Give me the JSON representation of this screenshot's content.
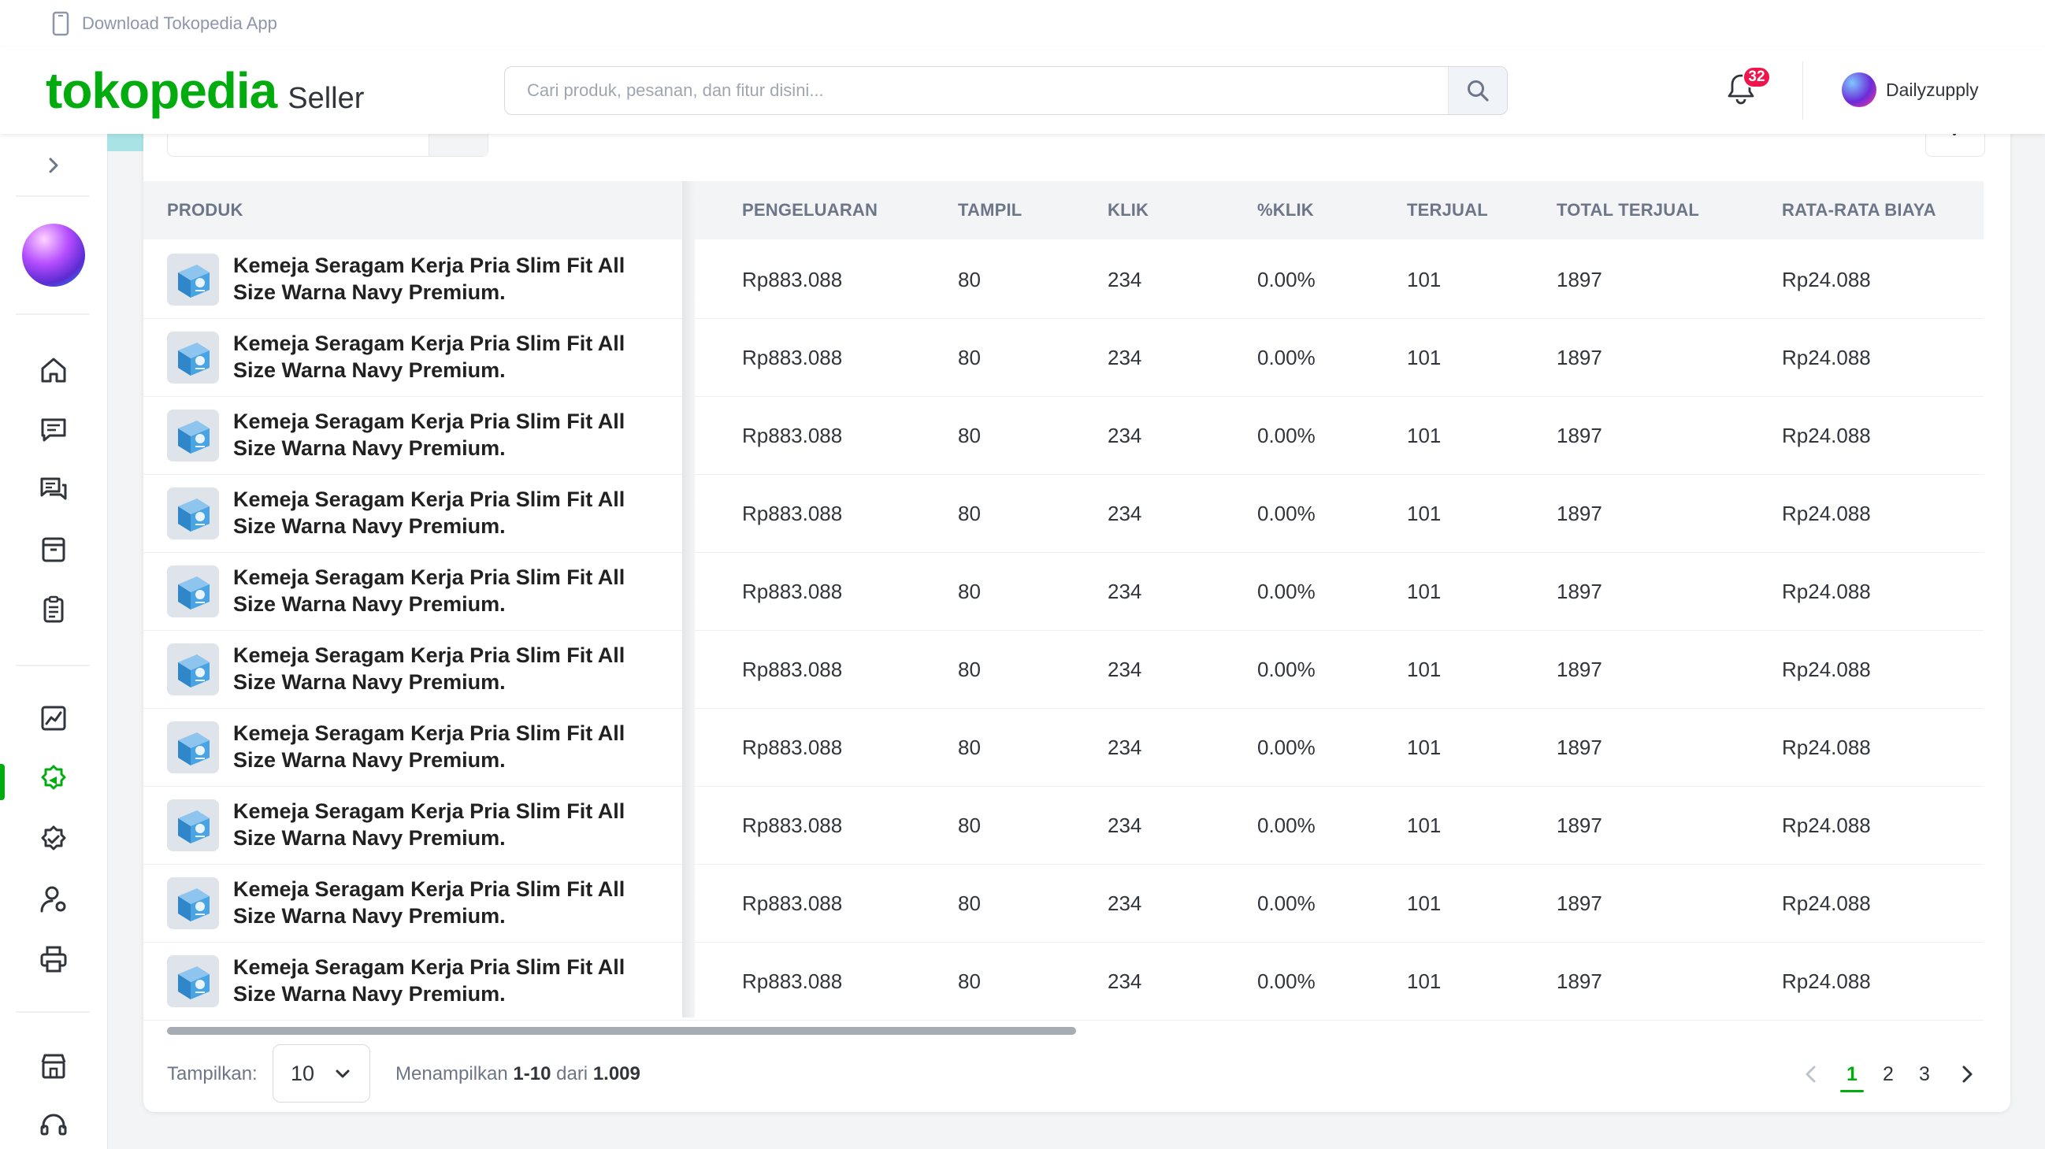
{
  "topbar": {
    "download_text": "Download Tokopedia App"
  },
  "header": {
    "brand": "tokopedia",
    "brand_suffix": "Seller",
    "search_placeholder": "Cari produk, pesanan, dan fitur disini...",
    "notification_count": "32",
    "username": "Dailyzupply"
  },
  "sidebar": {
    "icons": [
      "home-icon",
      "chat-icon",
      "discussion-icon",
      "product-box-icon",
      "orders-icon",
      "statistics-icon",
      "ads-icon",
      "badge-icon",
      "user-settings-icon",
      "printer-icon",
      "shop-icon",
      "support-icon"
    ],
    "active": "ads-icon"
  },
  "table": {
    "columns": [
      "PRODUK",
      "PENGELUARAN",
      "TAMPIL",
      "KLIK",
      "%KLIK",
      "TERJUAL",
      "TOTAL TERJUAL",
      "RATA-RATA BIAYA"
    ],
    "rows": [
      {
        "name_line1": "Kemeja Seragam Kerja Pria Slim Fit All",
        "name_line2": "Size Warna Navy Premium.",
        "pengeluaran": "Rp883.088",
        "tampil": "80",
        "klik": "234",
        "pct_klik": "0.00%",
        "terjual": "101",
        "total_terjual": "1897",
        "rata_biaya": "Rp24.088"
      },
      {
        "name_line1": "Kemeja Seragam Kerja Pria Slim Fit All",
        "name_line2": "Size Warna Navy Premium.",
        "pengeluaran": "Rp883.088",
        "tampil": "80",
        "klik": "234",
        "pct_klik": "0.00%",
        "terjual": "101",
        "total_terjual": "1897",
        "rata_biaya": "Rp24.088"
      },
      {
        "name_line1": "Kemeja Seragam Kerja Pria Slim Fit All",
        "name_line2": "Size Warna Navy Premium.",
        "pengeluaran": "Rp883.088",
        "tampil": "80",
        "klik": "234",
        "pct_klik": "0.00%",
        "terjual": "101",
        "total_terjual": "1897",
        "rata_biaya": "Rp24.088"
      },
      {
        "name_line1": "Kemeja Seragam Kerja Pria Slim Fit All",
        "name_line2": "Size Warna Navy Premium.",
        "pengeluaran": "Rp883.088",
        "tampil": "80",
        "klik": "234",
        "pct_klik": "0.00%",
        "terjual": "101",
        "total_terjual": "1897",
        "rata_biaya": "Rp24.088"
      },
      {
        "name_line1": "Kemeja Seragam Kerja Pria Slim Fit All",
        "name_line2": "Size Warna Navy Premium.",
        "pengeluaran": "Rp883.088",
        "tampil": "80",
        "klik": "234",
        "pct_klik": "0.00%",
        "terjual": "101",
        "total_terjual": "1897",
        "rata_biaya": "Rp24.088"
      },
      {
        "name_line1": "Kemeja Seragam Kerja Pria Slim Fit All",
        "name_line2": "Size Warna Navy Premium.",
        "pengeluaran": "Rp883.088",
        "tampil": "80",
        "klik": "234",
        "pct_klik": "0.00%",
        "terjual": "101",
        "total_terjual": "1897",
        "rata_biaya": "Rp24.088"
      },
      {
        "name_line1": "Kemeja Seragam Kerja Pria Slim Fit All",
        "name_line2": "Size Warna Navy Premium.",
        "pengeluaran": "Rp883.088",
        "tampil": "80",
        "klik": "234",
        "pct_klik": "0.00%",
        "terjual": "101",
        "total_terjual": "1897",
        "rata_biaya": "Rp24.088"
      },
      {
        "name_line1": "Kemeja Seragam Kerja Pria Slim Fit All",
        "name_line2": "Size Warna Navy Premium.",
        "pengeluaran": "Rp883.088",
        "tampil": "80",
        "klik": "234",
        "pct_klik": "0.00%",
        "terjual": "101",
        "total_terjual": "1897",
        "rata_biaya": "Rp24.088"
      },
      {
        "name_line1": "Kemeja Seragam Kerja Pria Slim Fit All",
        "name_line2": "Size Warna Navy Premium.",
        "pengeluaran": "Rp883.088",
        "tampil": "80",
        "klik": "234",
        "pct_klik": "0.00%",
        "terjual": "101",
        "total_terjual": "1897",
        "rata_biaya": "Rp24.088"
      },
      {
        "name_line1": "Kemeja Seragam Kerja Pria Slim Fit All",
        "name_line2": "Size Warna Navy Premium.",
        "pengeluaran": "Rp883.088",
        "tampil": "80",
        "klik": "234",
        "pct_klik": "0.00%",
        "terjual": "101",
        "total_terjual": "1897",
        "rata_biaya": "Rp24.088"
      }
    ]
  },
  "footer": {
    "tampilkan_label": "Tampilkan:",
    "per_page": "10",
    "showing_prefix": "Menampilkan ",
    "showing_range": "1-10",
    "showing_mid": " dari ",
    "showing_total": "1.009",
    "pages": [
      "1",
      "2",
      "3"
    ],
    "active_page": "1"
  },
  "colors": {
    "brand": "#03ac0e",
    "badge": "#ef144a"
  }
}
